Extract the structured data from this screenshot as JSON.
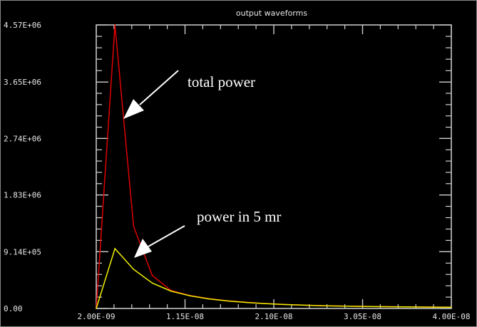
{
  "chart_data": {
    "type": "line",
    "title": "output waveforms",
    "xlabel": "",
    "ylabel": "",
    "xlim": [
      2e-09,
      4e-08
    ],
    "ylim": [
      0,
      4570000.0
    ],
    "grid": false,
    "x_tick_labels": [
      "2.00E-09",
      "1.15E-08",
      "2.10E-08",
      "3.05E-08",
      "4.00E-08"
    ],
    "x_ticks": [
      2e-09,
      1.15e-08,
      2.1e-08,
      3.05e-08,
      4e-08
    ],
    "y_tick_labels": [
      "0.00",
      "9.14E+05",
      "1.83E+06",
      "2.74E+06",
      "3.65E+06",
      "4.57E+06"
    ],
    "y_ticks": [
      0,
      914000.0,
      1830000.0,
      2740000.0,
      3650000.0,
      4570000.0
    ],
    "x": [
      2e-09,
      4e-09,
      6e-09,
      8e-09,
      1e-08,
      1.2e-08,
      1.4e-08,
      1.6e-08,
      1.8e-08,
      2e-08,
      2.2e-08,
      2.4e-08,
      2.6e-08,
      2.8e-08,
      3e-08,
      3.2e-08,
      3.4e-08,
      3.6e-08,
      3.8e-08,
      4e-08
    ],
    "series": [
      {
        "color": "#e00000",
        "values": [
          0,
          4570000.0,
          1320000.0,
          530000.0,
          290000.0,
          210000.0,
          160000.0,
          125000.0,
          100000.0,
          80000.0,
          65000.0,
          55000.0,
          46000.0,
          40000.0,
          35000.0,
          31000.0,
          28000.0,
          25000.0,
          23000.0,
          21000.0
        ]
      },
      {
        "color": "#f0f000",
        "values": [
          0,
          965000.0,
          630000.0,
          410000.0,
          280000.0,
          205000.0,
          155000.0,
          122000.0,
          98000.0,
          79000.0,
          64000.0,
          54000.0,
          45000.0,
          39000.0,
          34000.0,
          30000.0,
          27000.0,
          24000.0,
          22000.0,
          20000.0
        ]
      }
    ],
    "annotations": [
      {
        "text": "total power",
        "points_to_series": 0
      },
      {
        "text": "power in 5 mr",
        "points_to_series": 1
      }
    ]
  }
}
